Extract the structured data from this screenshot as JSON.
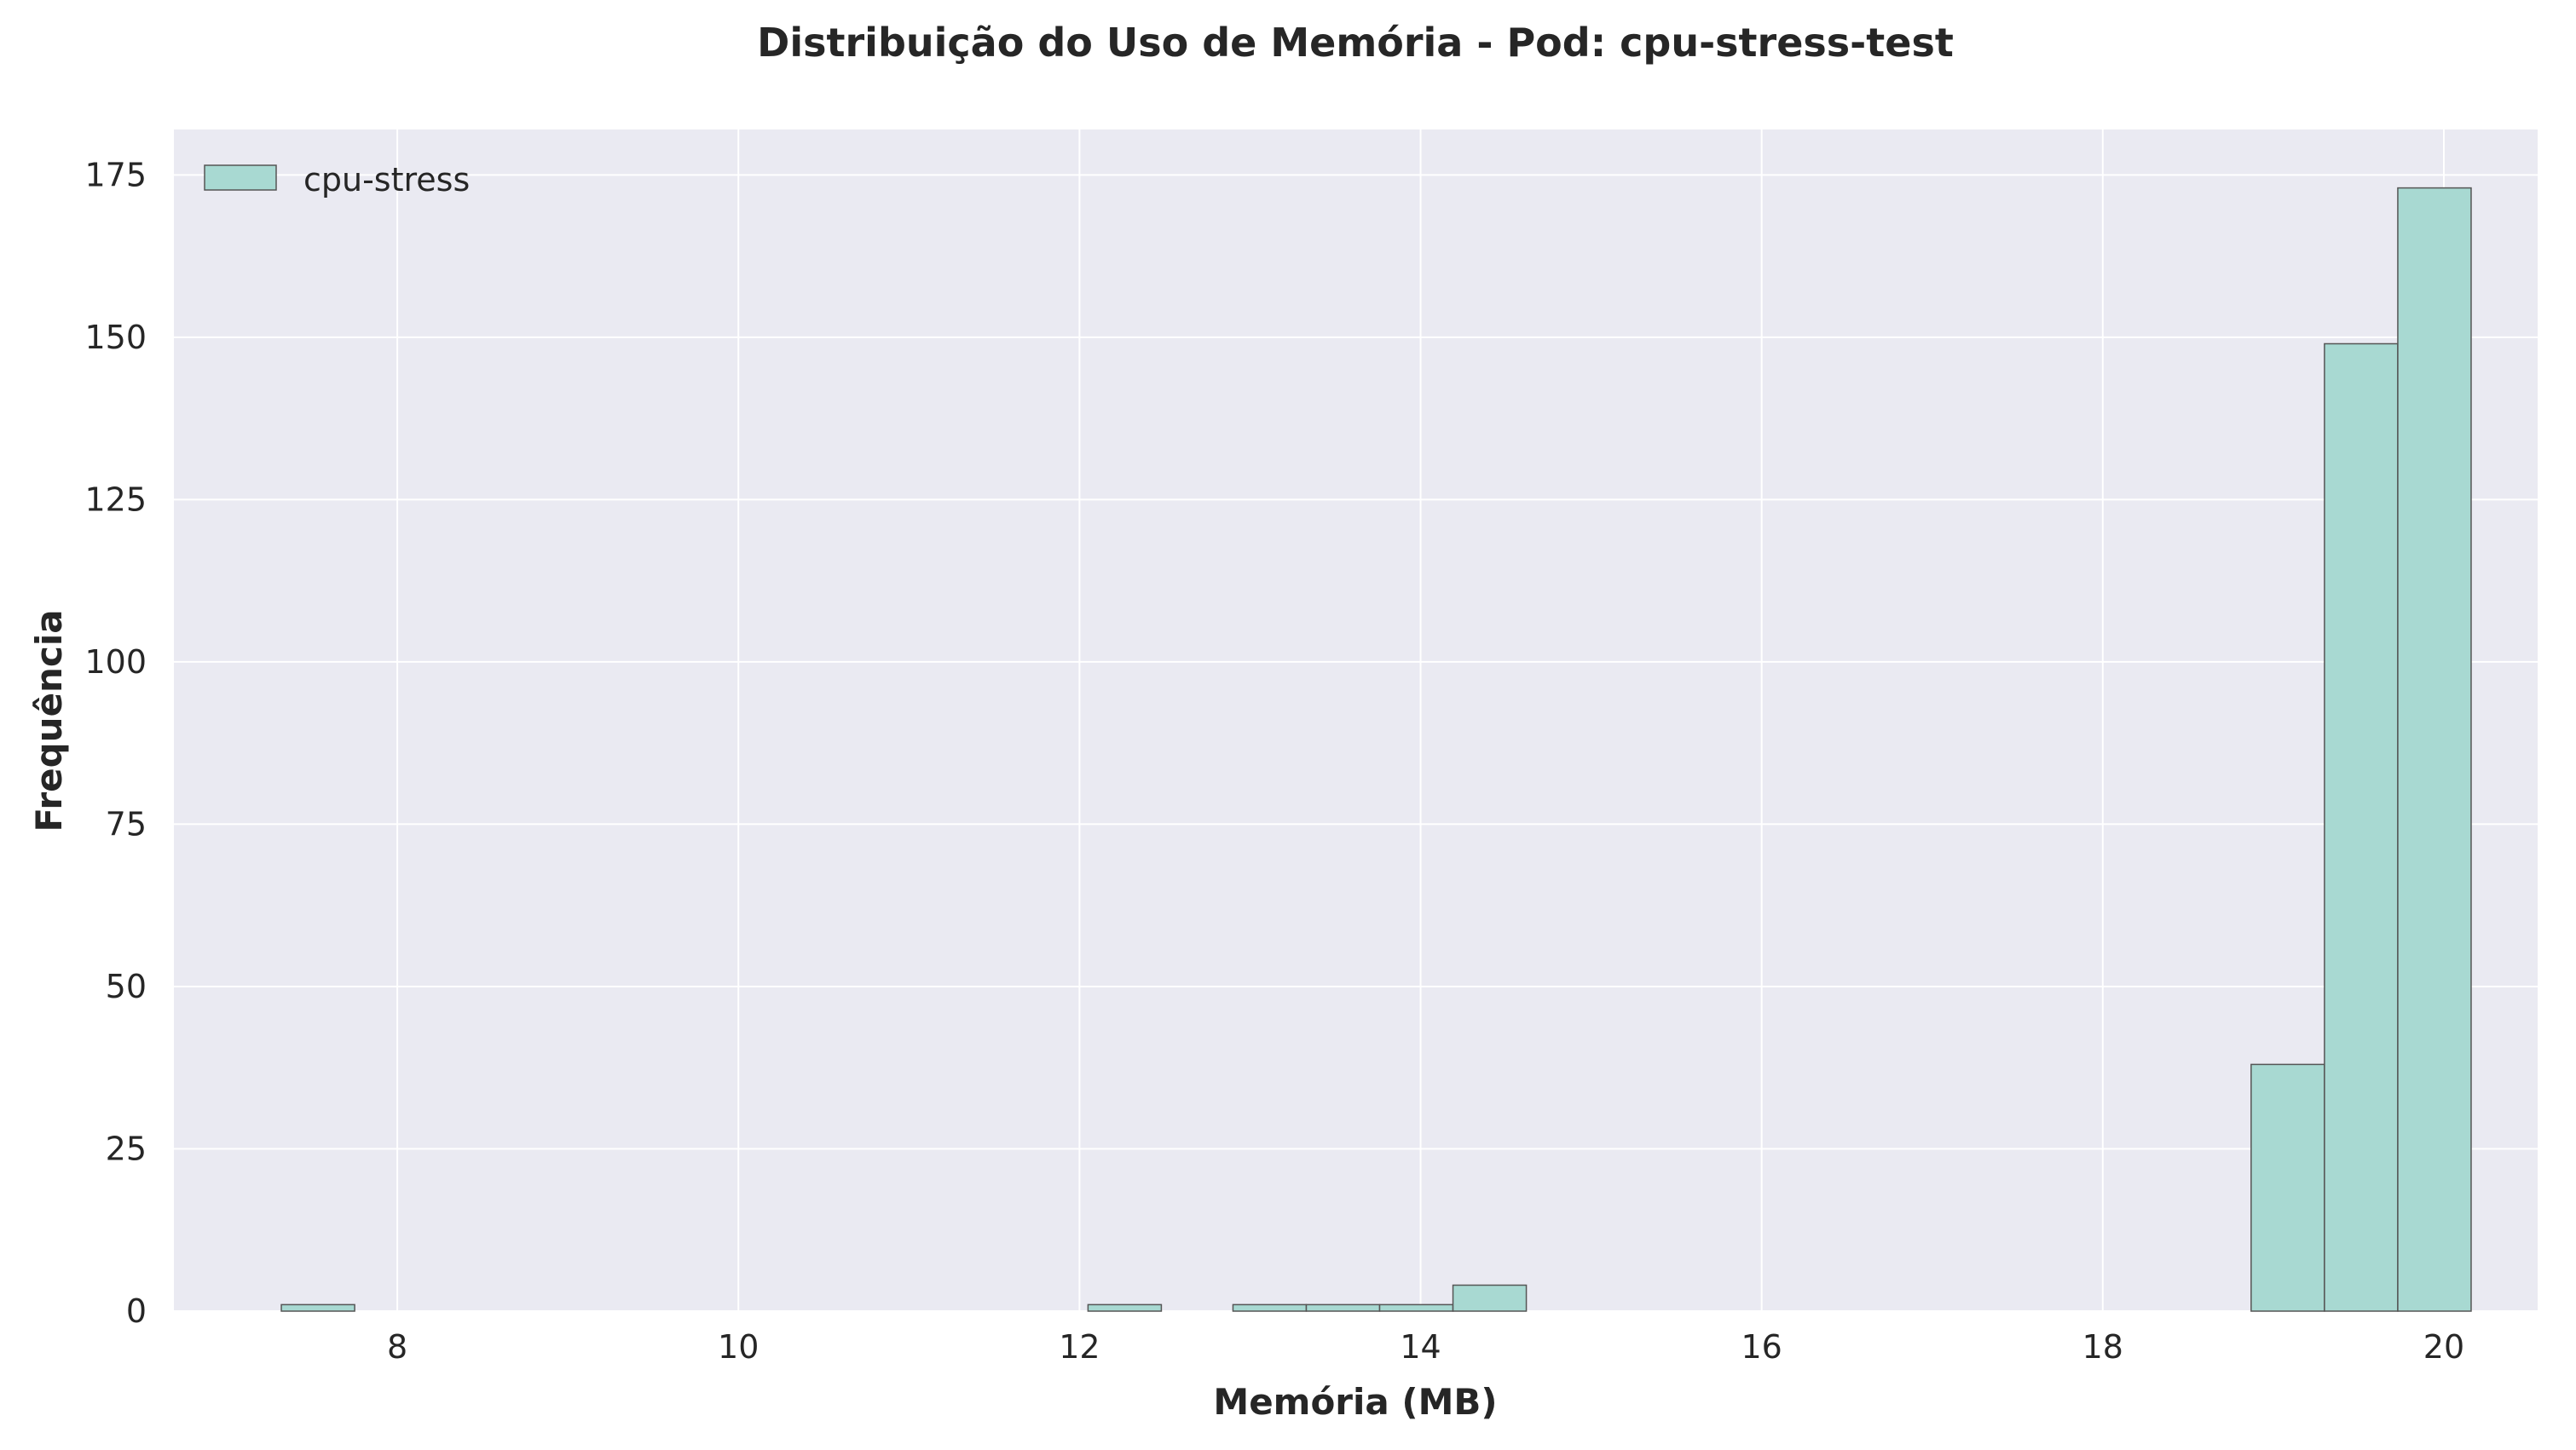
{
  "chart_data": {
    "type": "bar",
    "title": "Distribuição do Uso de Memória - Pod: cpu-stress-test",
    "xlabel": "Memória (MB)",
    "ylabel": "Frequência",
    "xlim": [
      6.69,
      20.55
    ],
    "ylim": [
      0,
      182
    ],
    "xticks": [
      8,
      10,
      12,
      14,
      16,
      18,
      20
    ],
    "yticks": [
      0,
      25,
      50,
      75,
      100,
      125,
      150,
      175
    ],
    "grid": true,
    "legend_position": "top-left",
    "series": [
      {
        "name": "cpu-stress",
        "color": "#a8d9d2",
        "edge_color": "#555555",
        "bins": [
          {
            "x0": 7.32,
            "x1": 7.75,
            "count": 1
          },
          {
            "x0": 12.05,
            "x1": 12.48,
            "count": 1
          },
          {
            "x0": 12.9,
            "x1": 13.33,
            "count": 1
          },
          {
            "x0": 13.33,
            "x1": 13.76,
            "count": 1
          },
          {
            "x0": 13.76,
            "x1": 14.19,
            "count": 1
          },
          {
            "x0": 14.19,
            "x1": 14.62,
            "count": 4
          },
          {
            "x0": 18.87,
            "x1": 19.3,
            "count": 38
          },
          {
            "x0": 19.3,
            "x1": 19.73,
            "count": 149
          },
          {
            "x0": 19.73,
            "x1": 20.16,
            "count": 173
          }
        ]
      }
    ]
  }
}
